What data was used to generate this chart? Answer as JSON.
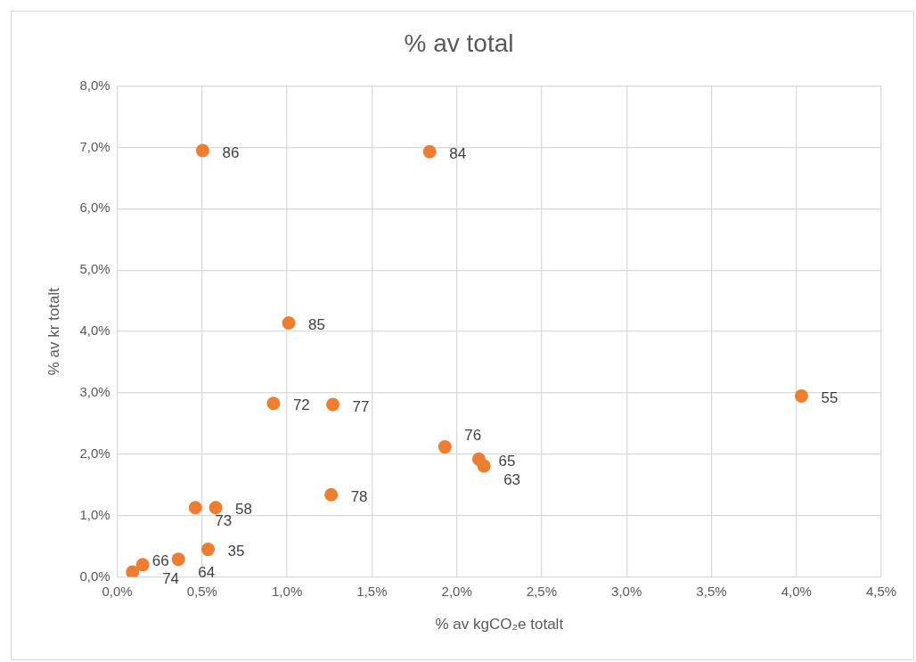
{
  "chart_data": {
    "type": "scatter",
    "title": "% av total",
    "xlabel": "% av kgCO₂e totalt",
    "ylabel": "% av kr totalt",
    "series": [
      {
        "color": "#ed7d31",
        "x": [
          0.503,
          1.84,
          1.01,
          0.92,
          1.27,
          4.03,
          1.93,
          2.13,
          2.16,
          1.26,
          0.46,
          0.58,
          0.535,
          0.36,
          0.15,
          0.09
        ],
        "values": [
          6.95,
          6.93,
          4.14,
          2.83,
          2.81,
          2.95,
          2.12,
          1.92,
          1.81,
          1.34,
          1.13,
          1.13,
          0.45,
          0.29,
          0.2,
          0.08
        ]
      }
    ],
    "annotations": [
      {
        "text": "86",
        "x": 0.503,
        "y": 6.95
      },
      {
        "text": "84",
        "x": 1.84,
        "y": 6.93
      },
      {
        "text": "85",
        "x": 1.01,
        "y": 4.14
      },
      {
        "text": "72",
        "x": 0.92,
        "y": 2.83
      },
      {
        "text": "77",
        "x": 1.27,
        "y": 2.81
      },
      {
        "text": "55",
        "x": 4.03,
        "y": 2.95
      },
      {
        "text": "76",
        "x": 1.93,
        "y": 2.12
      },
      {
        "text": "65",
        "x": 2.13,
        "y": 1.92
      },
      {
        "text": "63",
        "x": 2.16,
        "y": 1.81
      },
      {
        "text": "78",
        "x": 1.26,
        "y": 1.34
      },
      {
        "text": "73",
        "x": 0.46,
        "y": 1.13
      },
      {
        "text": "58",
        "x": 0.58,
        "y": 1.13
      },
      {
        "text": "35",
        "x": 0.535,
        "y": 0.45
      },
      {
        "text": "64",
        "x": 0.36,
        "y": 0.29
      },
      {
        "text": "74",
        "x": 0.15,
        "y": 0.2
      },
      {
        "text": "66",
        "x": 0.09,
        "y": 0.08
      }
    ],
    "xlim": [
      0,
      4.5
    ],
    "xticks": [
      {
        "value": 0,
        "label": "0,0%"
      },
      {
        "value": 0.5,
        "label": "0,5%"
      },
      {
        "value": 1,
        "label": "1,0%"
      },
      {
        "value": 1.5,
        "label": "1,5%"
      },
      {
        "value": 2,
        "label": "2,0%"
      },
      {
        "value": 2.5,
        "label": "2,5%"
      },
      {
        "value": 3,
        "label": "3,0%"
      },
      {
        "value": 3.5,
        "label": "3,5%"
      },
      {
        "value": 4,
        "label": "4,0%"
      },
      {
        "value": 4.5,
        "label": "4,5%"
      }
    ],
    "ylim": [
      0,
      8
    ],
    "yticks": [
      {
        "value": 0,
        "label": "0,0%"
      },
      {
        "value": 1,
        "label": "1,0%"
      },
      {
        "value": 2,
        "label": "2,0%"
      },
      {
        "value": 3,
        "label": "3,0%"
      },
      {
        "value": 4,
        "label": "4,0%"
      },
      {
        "value": 5,
        "label": "5,0%"
      },
      {
        "value": 6,
        "label": "6,0%"
      },
      {
        "value": 7,
        "label": "7,0%"
      },
      {
        "value": 8,
        "label": "8,0%"
      }
    ],
    "grid": true,
    "legend": false,
    "marker": "circle"
  }
}
